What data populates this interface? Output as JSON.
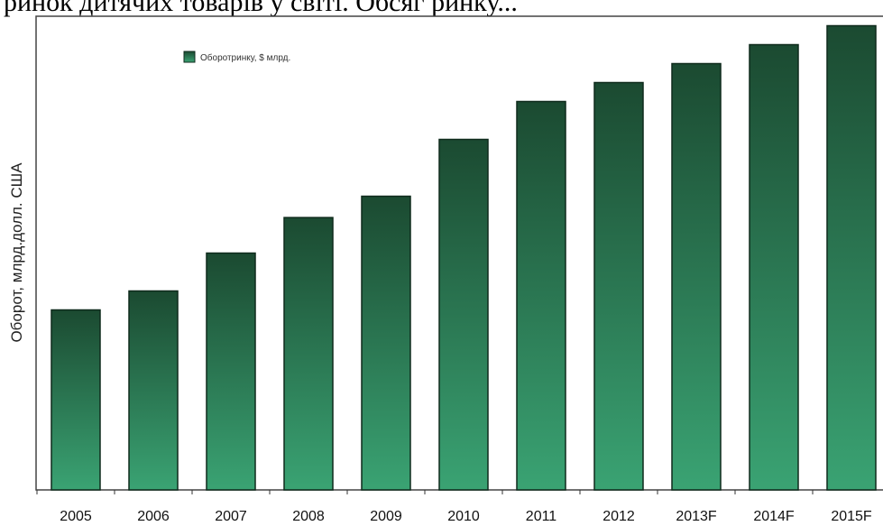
{
  "page": {
    "caption": "ринок дитячих товарів у світі. Обсяг ринку..."
  },
  "chart_data": {
    "type": "bar",
    "title": "",
    "xlabel": "",
    "ylabel": "Оборот, млрд.долл. США",
    "categories": [
      "2005",
      "2006",
      "2007",
      "2008",
      "2009",
      "2010",
      "2011",
      "2012",
      "2013F",
      "2014F",
      "2015F"
    ],
    "series": [
      {
        "name": "Оборотринку, $ млрд.",
        "values": [
          38,
          42,
          50,
          57.5,
          62,
          74,
          82,
          86,
          90,
          94,
          98
        ]
      }
    ],
    "ylim": [
      0,
      100
    ],
    "grid": false,
    "legend": "top-left"
  },
  "colors": {
    "bar_top": "#1b4a31",
    "bar_bottom": "#3aa373",
    "bar_stroke": "#0f2a1c",
    "axis": "#333333"
  }
}
